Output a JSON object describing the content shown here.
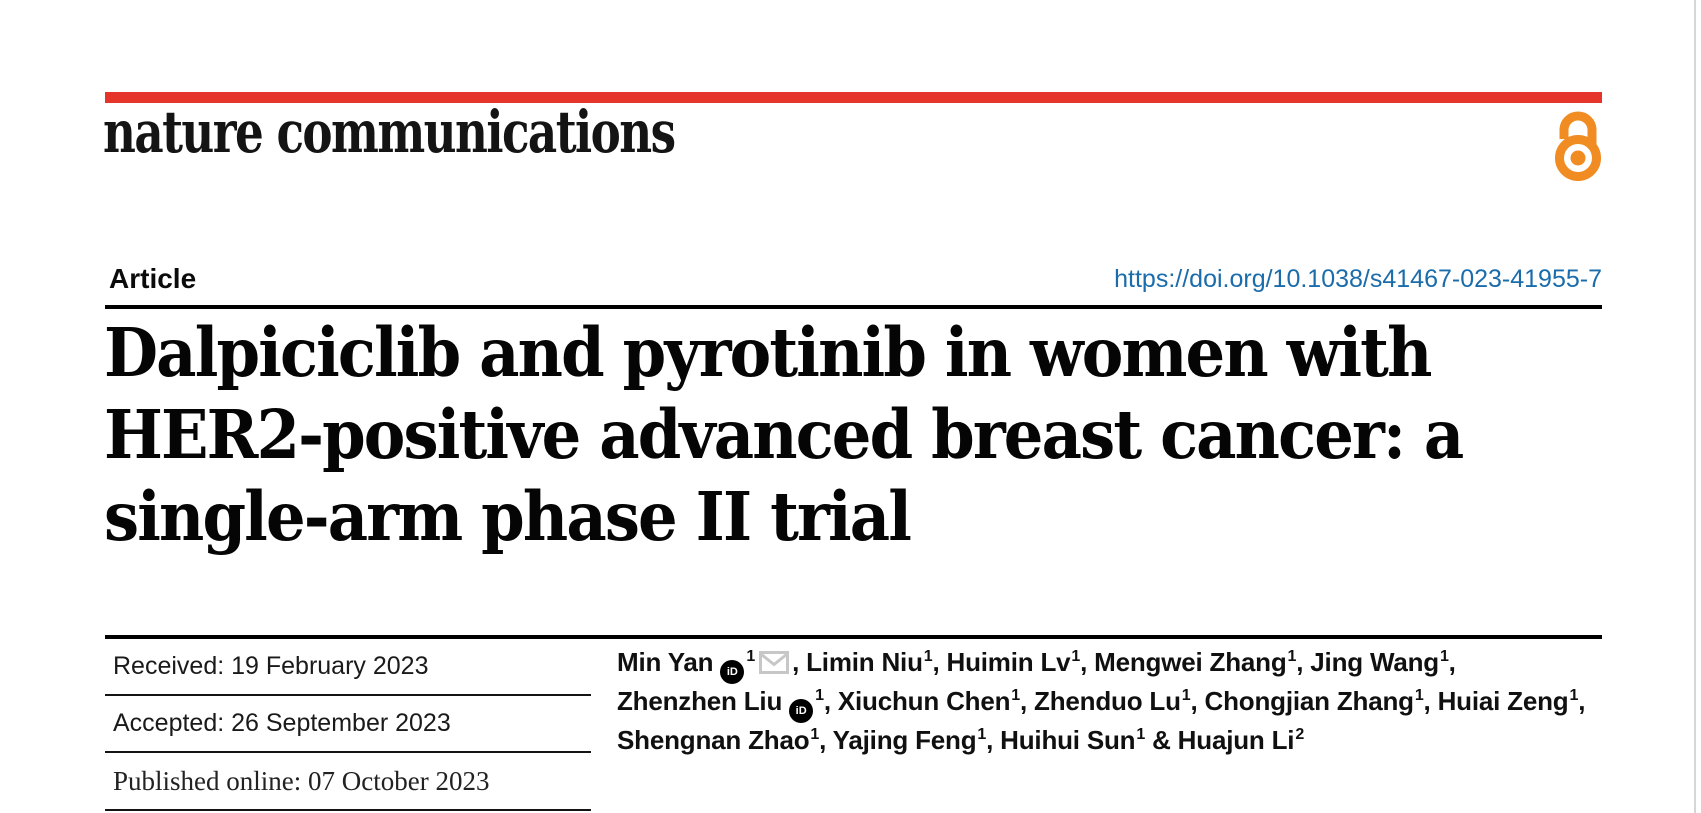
{
  "colors": {
    "brand_red": "#e5342a",
    "open_access_orange": "#f08c21",
    "link_blue": "#1b6cab",
    "rule_black": "#000000"
  },
  "masthead": {
    "wordmark": "nature communications"
  },
  "article": {
    "kicker": "Article",
    "doi": "https://doi.org/10.1038/s41467-023-41955-7",
    "title_lines": [
      "Dalpiciclib and pyrotinib in women with",
      "HER2-positive advanced breast cancer: a",
      "single-arm phase II trial"
    ]
  },
  "dates": {
    "received": "Received: 19 February 2023",
    "accepted": "Accepted: 26 September 2023",
    "published": "Published online: 07 October 2023"
  },
  "icons": {
    "orcid_label": "iD",
    "open_access": "open-access-padlock-icon",
    "email": "envelope-icon"
  },
  "authors": {
    "lines": [
      [
        {
          "t": "text",
          "v": "Min Yan"
        },
        {
          "t": "orcid"
        },
        {
          "t": "sup",
          "v": "1"
        },
        {
          "t": "mail"
        },
        {
          "t": "text",
          "v": ", Limin Niu"
        },
        {
          "t": "sup",
          "v": "1"
        },
        {
          "t": "text",
          "v": ", Huimin Lv"
        },
        {
          "t": "sup",
          "v": "1"
        },
        {
          "t": "text",
          "v": ", Mengwei Zhang"
        },
        {
          "t": "sup",
          "v": "1"
        },
        {
          "t": "text",
          "v": ", Jing Wang"
        },
        {
          "t": "sup",
          "v": "1"
        },
        {
          "t": "text",
          "v": ","
        }
      ],
      [
        {
          "t": "text",
          "v": "Zhenzhen Liu"
        },
        {
          "t": "orcid"
        },
        {
          "t": "sup",
          "v": "1"
        },
        {
          "t": "text",
          "v": ", Xiuchun Chen"
        },
        {
          "t": "sup",
          "v": "1"
        },
        {
          "t": "text",
          "v": ", Zhenduo Lu"
        },
        {
          "t": "sup",
          "v": "1"
        },
        {
          "t": "text",
          "v": ", Chongjian Zhang"
        },
        {
          "t": "sup",
          "v": "1"
        },
        {
          "t": "text",
          "v": ", Huiai Zeng"
        },
        {
          "t": "sup",
          "v": "1"
        },
        {
          "t": "text",
          "v": ","
        }
      ],
      [
        {
          "t": "text",
          "v": "Shengnan Zhao"
        },
        {
          "t": "sup",
          "v": "1"
        },
        {
          "t": "text",
          "v": ", Yajing Feng"
        },
        {
          "t": "sup",
          "v": "1"
        },
        {
          "t": "text",
          "v": ", Huihui Sun"
        },
        {
          "t": "sup",
          "v": "1"
        },
        {
          "t": "text",
          "v": " & Huajun Li"
        },
        {
          "t": "sup",
          "v": "2"
        }
      ]
    ]
  }
}
